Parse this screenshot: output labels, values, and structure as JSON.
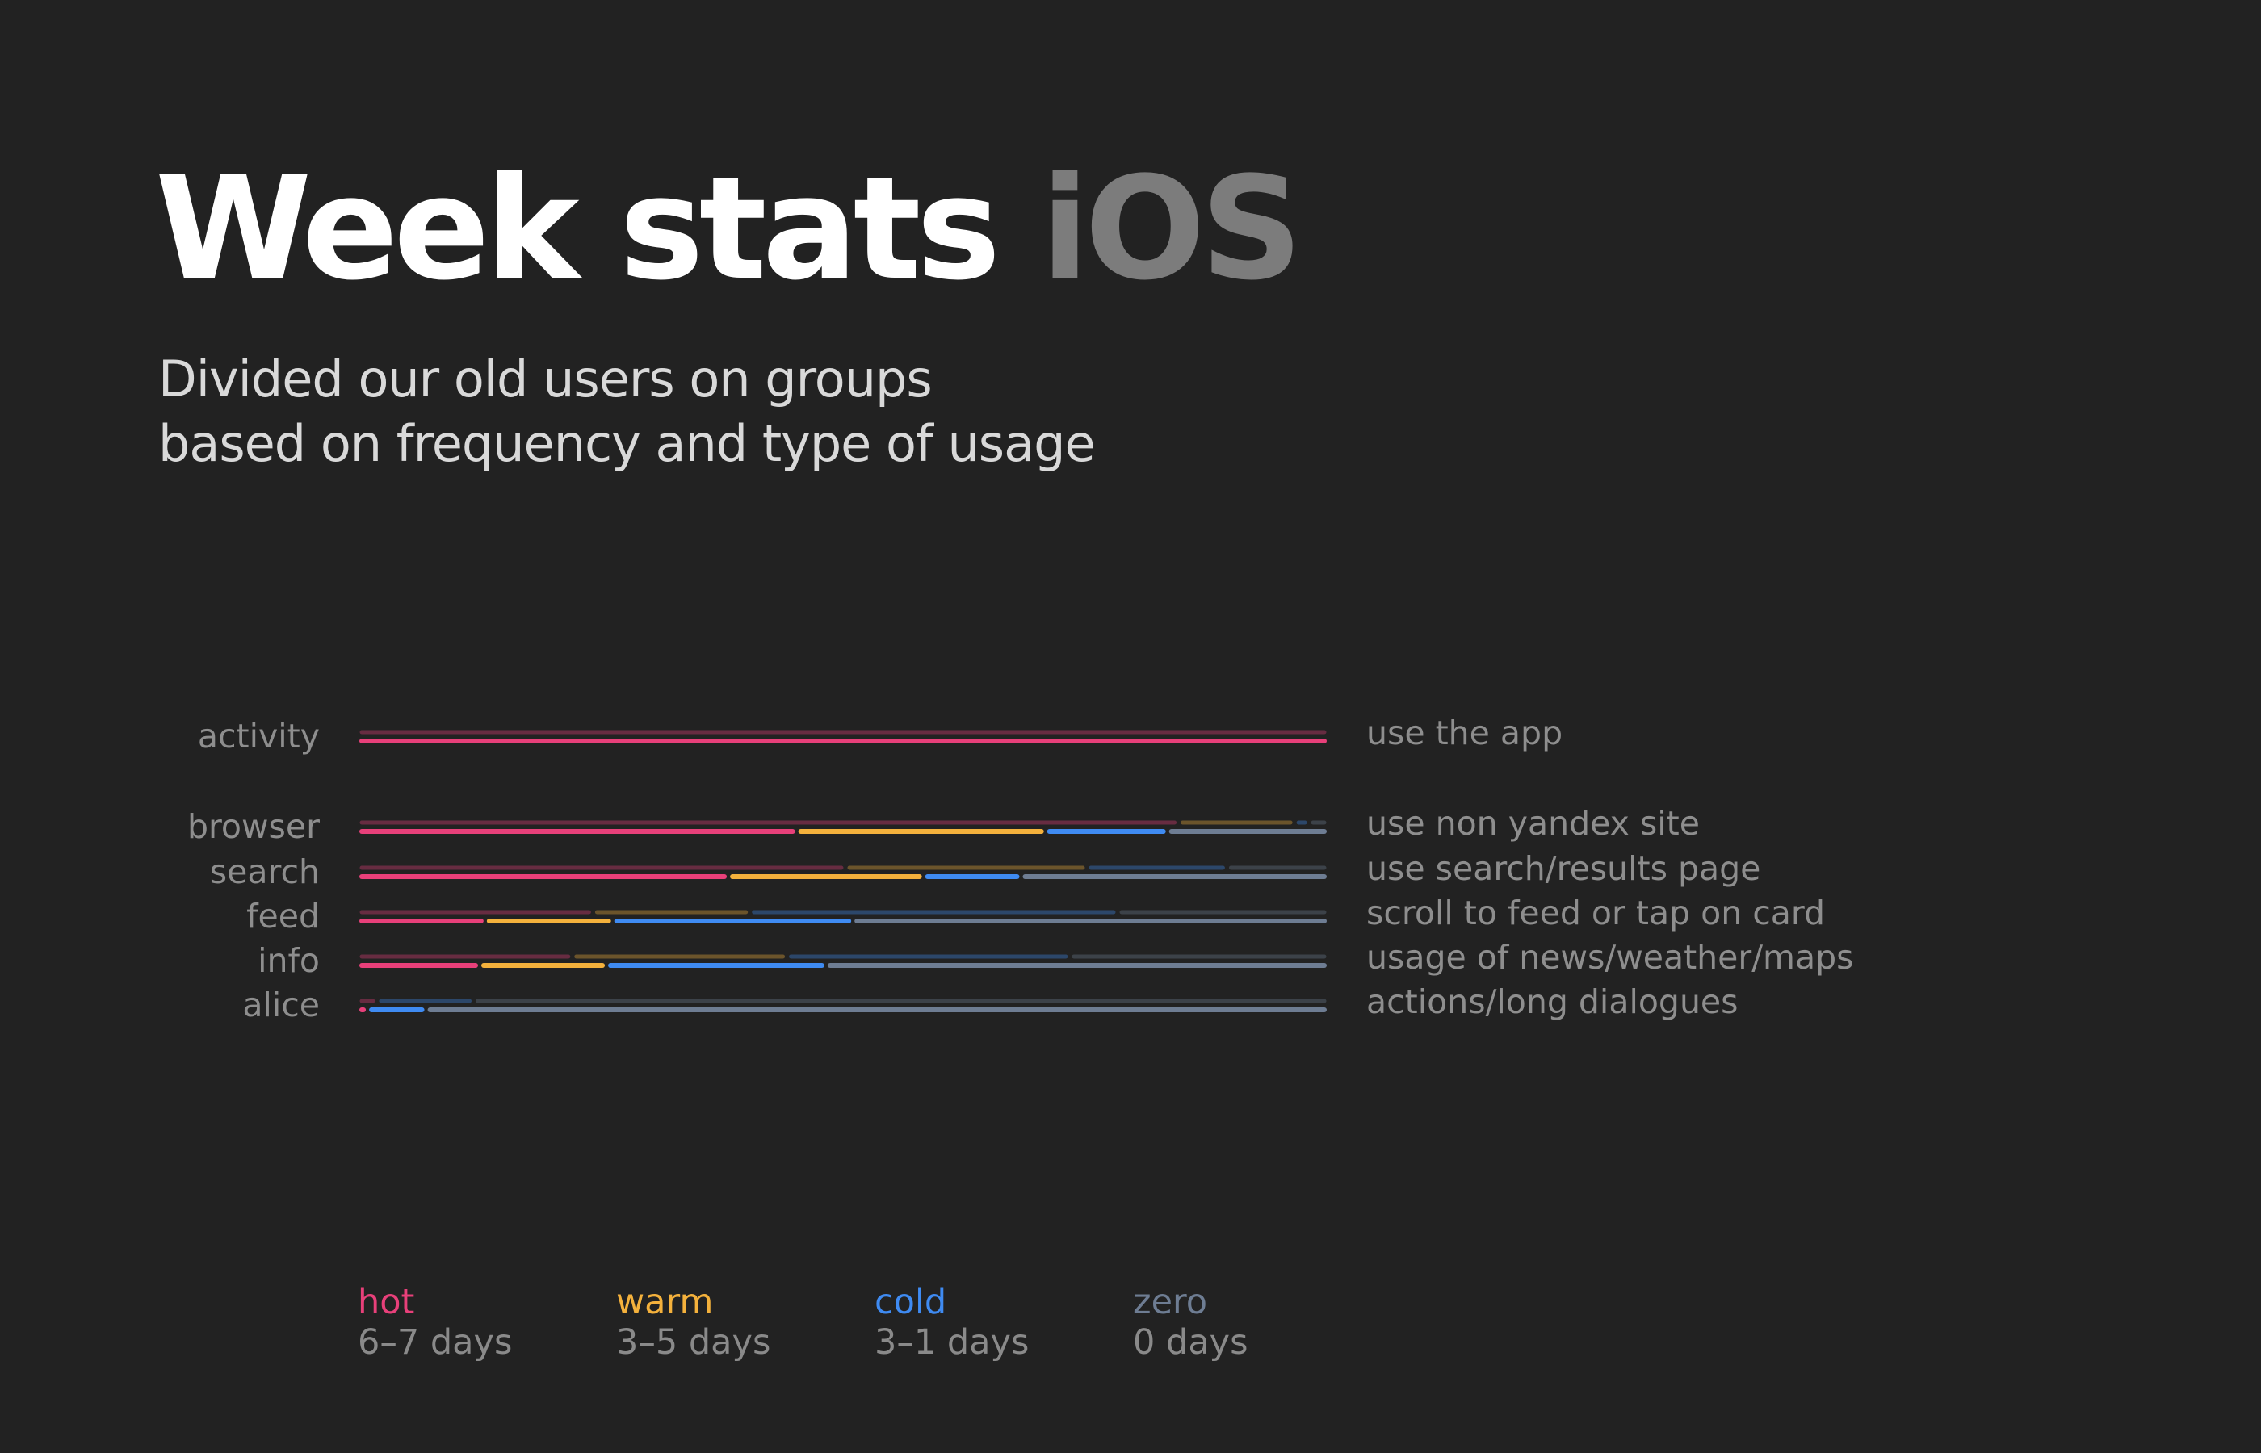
{
  "header": {
    "title_main": "Week stats",
    "title_accent": "iOS",
    "subtitle_line1": "Divided our old users on groups",
    "subtitle_line2": "based on frequency and type of usage"
  },
  "colors": {
    "background": "#222222",
    "hot": "#e8407a",
    "warm": "#f4b13c",
    "cold": "#3f8bf2",
    "zero": "#6e7d93",
    "label": "#8e8e8e"
  },
  "legend": [
    {
      "key": "hot",
      "name": "hot",
      "days": "6–7 days"
    },
    {
      "key": "warm",
      "name": "warm",
      "days": "3–5 days"
    },
    {
      "key": "cold",
      "name": "cold",
      "days": "3–1 days"
    },
    {
      "key": "zero",
      "name": "zero",
      "days": "0 days"
    }
  ],
  "chart_data": {
    "type": "bar",
    "orientation": "horizontal",
    "stacked": true,
    "note_layers": "each category has a faint back bar (previous) and a bright front bar (current), both as shares of users",
    "categories": [
      "activity",
      "browser",
      "search",
      "feed",
      "info",
      "alice"
    ],
    "descriptions": [
      "use the app",
      "use non yandex site",
      "use search/results page",
      "scroll to feed or tap on card",
      "usage of news/weather/maps",
      "actions/long dialogues"
    ],
    "series": [
      {
        "name": "hot",
        "back": [
          100,
          85,
          50.5,
          24,
          22,
          2
        ],
        "front": [
          100,
          45,
          38,
          13,
          12.5,
          1
        ]
      },
      {
        "name": "warm",
        "back": [
          0,
          12,
          25,
          16,
          22,
          0
        ],
        "front": [
          0,
          25.5,
          20,
          13,
          13,
          0
        ]
      },
      {
        "name": "cold",
        "back": [
          0,
          1.5,
          14.5,
          37.5,
          29,
          10
        ],
        "front": [
          0,
          12.5,
          10,
          24.5,
          22.5,
          6
        ]
      },
      {
        "name": "zero",
        "back": [
          0,
          1.5,
          10,
          21,
          26,
          88
        ],
        "front": [
          0,
          16,
          31,
          48,
          51,
          92
        ]
      }
    ],
    "xlim": [
      0,
      100
    ],
    "legend_position": "bottom-left"
  }
}
